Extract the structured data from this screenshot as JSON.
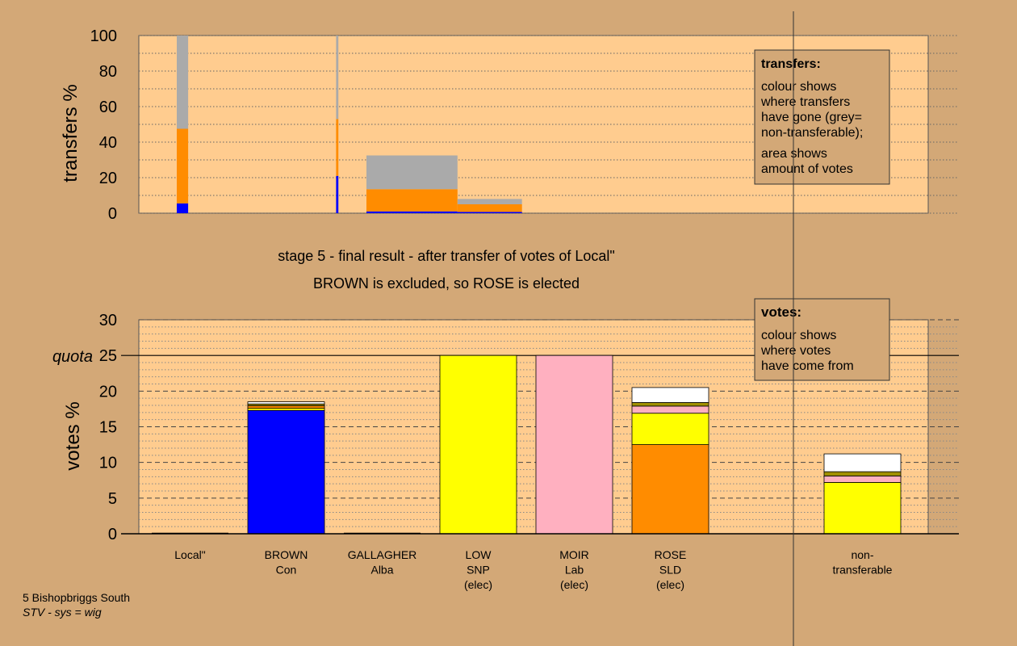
{
  "colors": {
    "background": "#d3a877",
    "plot_bg": "#ffcc8f",
    "box_bg": "#d3a877",
    "blue": "#0000ff",
    "orange": "#ff8c00",
    "grey": "#aaaaaa",
    "yellow": "#ffff00",
    "pink": "#ffb0c0",
    "white": "#ffffff",
    "olive": "#a09000",
    "black": "#000000"
  },
  "chart_data": [
    {
      "type": "bar",
      "name": "transfers",
      "ylabel": "transfers %",
      "ylim": [
        0,
        100
      ],
      "yticks": [
        0,
        20,
        40,
        60,
        80,
        100
      ],
      "grid": "dotted",
      "note": {
        "title": "transfers:",
        "lines_a": [
          "colour shows",
          "where transfers",
          "have gone (grey=",
          "non-transferable);"
        ],
        "lines_b": [
          "area shows",
          "amount of votes"
        ]
      },
      "bars": [
        {
          "x": [
            0.5,
            0.65
          ],
          "segments": [
            {
              "color": "blue",
              "value": 5.5
            },
            {
              "color": "orange",
              "value": 42
            },
            {
              "color": "grey",
              "value": 52.5
            }
          ]
        },
        {
          "x": [
            2.6,
            2.63
          ],
          "segments": [
            {
              "color": "blue",
              "value": 21
            },
            {
              "color": "orange",
              "value": 32
            },
            {
              "color": "grey",
              "value": 47
            }
          ]
        },
        {
          "x": [
            3.0,
            4.2
          ],
          "segments": [
            {
              "color": "blue",
              "value": 1
            },
            {
              "color": "orange",
              "value": 12.5
            },
            {
              "color": "grey",
              "value": 19
            }
          ]
        },
        {
          "x": [
            4.2,
            5.05
          ],
          "segments": [
            {
              "color": "blue",
              "value": 0.7
            },
            {
              "color": "orange",
              "value": 4.3
            },
            {
              "color": "grey",
              "value": 3
            }
          ]
        }
      ]
    },
    {
      "type": "bar",
      "name": "votes",
      "ylabel": "votes %",
      "ylim": [
        0,
        30
      ],
      "yticks": [
        0,
        5,
        10,
        15,
        20,
        25,
        30
      ],
      "quota": {
        "value": 25,
        "label": "quota"
      },
      "grid": "dashed",
      "title_lines": [
        "stage 5 - final result - after transfer of votes of Local\"",
        "BROWN is excluded, so ROSE is elected"
      ],
      "note": {
        "title": "votes:",
        "lines_a": [
          "colour shows",
          "where votes",
          "have come from"
        ]
      },
      "categories": [
        {
          "lines": [
            "Local\""
          ],
          "segments": []
        },
        {
          "lines": [
            "BROWN",
            "Con"
          ],
          "segments": [
            {
              "color": "blue",
              "value": 17.3
            },
            {
              "color": "yellow",
              "value": 0.3
            },
            {
              "color": "orange",
              "value": 0.35
            },
            {
              "color": "olive",
              "value": 0.25
            },
            {
              "color": "white",
              "value": 0.3
            }
          ]
        },
        {
          "lines": [
            "GALLAGHER",
            "Alba"
          ],
          "segments": []
        },
        {
          "lines": [
            "LOW",
            "SNP",
            "(elec)"
          ],
          "segments": [
            {
              "color": "yellow",
              "value": 25
            }
          ]
        },
        {
          "lines": [
            "MOIR",
            "Lab",
            "(elec)"
          ],
          "segments": [
            {
              "color": "pink",
              "value": 25
            }
          ]
        },
        {
          "lines": [
            "ROSE",
            "SLD",
            "(elec)"
          ],
          "segments": [
            {
              "color": "orange",
              "value": 12.5
            },
            {
              "color": "yellow",
              "value": 4.4
            },
            {
              "color": "pink",
              "value": 1
            },
            {
              "color": "olive",
              "value": 0.5
            },
            {
              "color": "white",
              "value": 2.1
            }
          ]
        },
        {
          "lines": [
            "non-",
            "transferable"
          ],
          "segments": [
            {
              "color": "yellow",
              "value": 7.2
            },
            {
              "color": "pink",
              "value": 0.9
            },
            {
              "color": "olive",
              "value": 0.6
            },
            {
              "color": "white",
              "value": 2.5
            }
          ]
        }
      ]
    }
  ],
  "footer": {
    "line1": "5 Bishopbriggs South",
    "line2": "STV - sys = wig"
  }
}
